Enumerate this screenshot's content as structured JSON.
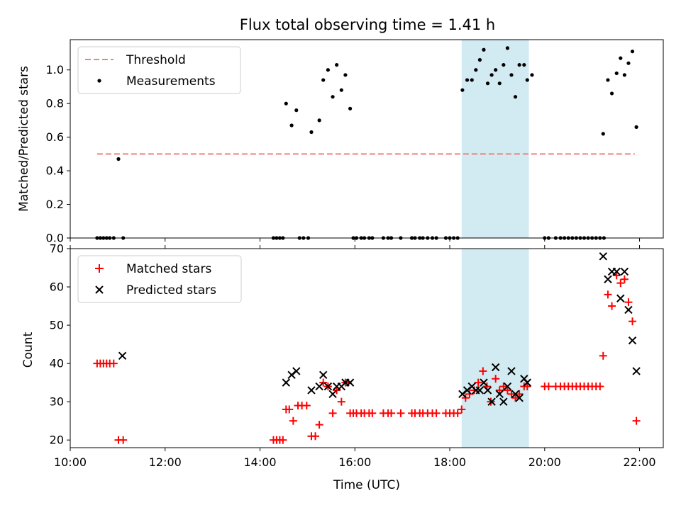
{
  "chart_data": [
    {
      "type": "scatter",
      "title": "Flux total observing time = 1.41 h",
      "xlabel": "",
      "ylabel": "Matched/Predicted stars",
      "xlim": [
        "10:00",
        "22:30"
      ],
      "ylim": [
        0,
        1.18
      ],
      "yticks": [
        "0.0",
        "0.2",
        "0.4",
        "0.6",
        "0.8",
        "1.0"
      ],
      "grid": false,
      "legend_position": "upper-left",
      "legend": [
        "Threshold",
        "Measurements"
      ],
      "highlight_span": {
        "start": "18:15",
        "end": "19:40",
        "color": "#add8e6"
      },
      "threshold": {
        "name": "Threshold",
        "value": 0.5,
        "x_start": "10:34",
        "x_end": "21:54",
        "color": "#f08080",
        "style": "dashed"
      },
      "series": [
        {
          "name": "Measurements",
          "marker": "dot",
          "color": "#000000",
          "points": [
            {
              "x": "10:34",
              "y": 0
            },
            {
              "x": "10:38",
              "y": 0
            },
            {
              "x": "10:42",
              "y": 0
            },
            {
              "x": "10:46",
              "y": 0
            },
            {
              "x": "10:50",
              "y": 0
            },
            {
              "x": "10:55",
              "y": 0
            },
            {
              "x": "11:01",
              "y": 0.47
            },
            {
              "x": "11:07",
              "y": 0
            },
            {
              "x": "14:17",
              "y": 0
            },
            {
              "x": "14:21",
              "y": 0
            },
            {
              "x": "14:25",
              "y": 0
            },
            {
              "x": "14:29",
              "y": 0
            },
            {
              "x": "14:33",
              "y": 0.8
            },
            {
              "x": "14:40",
              "y": 0.67
            },
            {
              "x": "14:46",
              "y": 0.76
            },
            {
              "x": "14:50",
              "y": 0
            },
            {
              "x": "14:55",
              "y": 0
            },
            {
              "x": "15:01",
              "y": 0
            },
            {
              "x": "15:05",
              "y": 0.63
            },
            {
              "x": "15:15",
              "y": 0.7
            },
            {
              "x": "15:20",
              "y": 0.94
            },
            {
              "x": "15:26",
              "y": 1.0
            },
            {
              "x": "15:32",
              "y": 0.84
            },
            {
              "x": "15:37",
              "y": 1.03
            },
            {
              "x": "15:43",
              "y": 0.88
            },
            {
              "x": "15:48",
              "y": 0.97
            },
            {
              "x": "15:54",
              "y": 0.77
            },
            {
              "x": "15:58",
              "y": 0
            },
            {
              "x": "16:02",
              "y": 0
            },
            {
              "x": "16:08",
              "y": 0
            },
            {
              "x": "16:12",
              "y": 0
            },
            {
              "x": "16:18",
              "y": 0
            },
            {
              "x": "16:22",
              "y": 0
            },
            {
              "x": "16:36",
              "y": 0
            },
            {
              "x": "16:42",
              "y": 0
            },
            {
              "x": "16:46",
              "y": 0
            },
            {
              "x": "16:58",
              "y": 0
            },
            {
              "x": "17:12",
              "y": 0
            },
            {
              "x": "17:16",
              "y": 0
            },
            {
              "x": "17:22",
              "y": 0
            },
            {
              "x": "17:26",
              "y": 0
            },
            {
              "x": "17:32",
              "y": 0
            },
            {
              "x": "17:38",
              "y": 0
            },
            {
              "x": "17:43",
              "y": 0
            },
            {
              "x": "17:55",
              "y": 0
            },
            {
              "x": "18:00",
              "y": 0
            },
            {
              "x": "18:05",
              "y": 0
            },
            {
              "x": "18:10",
              "y": 0
            },
            {
              "x": "18:16",
              "y": 0.88
            },
            {
              "x": "18:22",
              "y": 0.94
            },
            {
              "x": "18:28",
              "y": 0.94
            },
            {
              "x": "18:33",
              "y": 1.0
            },
            {
              "x": "18:38",
              "y": 1.06
            },
            {
              "x": "18:43",
              "y": 1.12
            },
            {
              "x": "18:48",
              "y": 0.92
            },
            {
              "x": "18:53",
              "y": 0.97
            },
            {
              "x": "18:58",
              "y": 1.0
            },
            {
              "x": "19:03",
              "y": 0.92
            },
            {
              "x": "19:08",
              "y": 1.03
            },
            {
              "x": "19:13",
              "y": 1.13
            },
            {
              "x": "19:18",
              "y": 0.97
            },
            {
              "x": "19:23",
              "y": 0.84
            },
            {
              "x": "19:28",
              "y": 1.03
            },
            {
              "x": "19:34",
              "y": 1.03
            },
            {
              "x": "19:38",
              "y": 0.94
            },
            {
              "x": "19:44",
              "y": 0.97
            },
            {
              "x": "20:00",
              "y": 0
            },
            {
              "x": "20:05",
              "y": 0
            },
            {
              "x": "20:14",
              "y": 0
            },
            {
              "x": "20:20",
              "y": 0
            },
            {
              "x": "20:25",
              "y": 0
            },
            {
              "x": "20:30",
              "y": 0
            },
            {
              "x": "20:35",
              "y": 0
            },
            {
              "x": "20:40",
              "y": 0
            },
            {
              "x": "20:45",
              "y": 0
            },
            {
              "x": "20:50",
              "y": 0
            },
            {
              "x": "20:55",
              "y": 0
            },
            {
              "x": "21:00",
              "y": 0
            },
            {
              "x": "21:05",
              "y": 0
            },
            {
              "x": "21:10",
              "y": 0
            },
            {
              "x": "21:15",
              "y": 0
            },
            {
              "x": "21:14",
              "y": 0.62
            },
            {
              "x": "21:20",
              "y": 0.94
            },
            {
              "x": "21:25",
              "y": 0.86
            },
            {
              "x": "21:31",
              "y": 0.98
            },
            {
              "x": "21:36",
              "y": 1.07
            },
            {
              "x": "21:41",
              "y": 0.97
            },
            {
              "x": "21:46",
              "y": 1.04
            },
            {
              "x": "21:51",
              "y": 1.11
            },
            {
              "x": "21:56",
              "y": 0.66
            }
          ]
        }
      ]
    },
    {
      "type": "scatter",
      "title": "",
      "xlabel": "Time (UTC)",
      "ylabel": "Count",
      "xlim": [
        "10:00",
        "22:30"
      ],
      "ylim": [
        18,
        70
      ],
      "xticks": [
        "10:00",
        "12:00",
        "14:00",
        "16:00",
        "18:00",
        "20:00",
        "22:00"
      ],
      "yticks": [
        "20",
        "30",
        "40",
        "50",
        "60",
        "70"
      ],
      "grid": false,
      "legend_position": "upper-left",
      "legend": [
        "Matched stars",
        "Predicted stars"
      ],
      "highlight_span": {
        "start": "18:15",
        "end": "19:40",
        "color": "#add8e6"
      },
      "series": [
        {
          "name": "Matched stars",
          "marker": "plus",
          "color": "#ff0000",
          "points": [
            {
              "x": "10:34",
              "y": 40
            },
            {
              "x": "10:38",
              "y": 40
            },
            {
              "x": "10:42",
              "y": 40
            },
            {
              "x": "10:46",
              "y": 40
            },
            {
              "x": "10:50",
              "y": 40
            },
            {
              "x": "10:55",
              "y": 40
            },
            {
              "x": "11:01",
              "y": 20
            },
            {
              "x": "11:07",
              "y": 20
            },
            {
              "x": "14:17",
              "y": 20
            },
            {
              "x": "14:21",
              "y": 20
            },
            {
              "x": "14:25",
              "y": 20
            },
            {
              "x": "14:29",
              "y": 20
            },
            {
              "x": "14:33",
              "y": 28
            },
            {
              "x": "14:37",
              "y": 28
            },
            {
              "x": "14:42",
              "y": 25
            },
            {
              "x": "14:48",
              "y": 29
            },
            {
              "x": "14:53",
              "y": 29
            },
            {
              "x": "14:59",
              "y": 29
            },
            {
              "x": "15:05",
              "y": 21
            },
            {
              "x": "15:10",
              "y": 21
            },
            {
              "x": "15:15",
              "y": 24
            },
            {
              "x": "15:20",
              "y": 35
            },
            {
              "x": "15:26",
              "y": 34
            },
            {
              "x": "15:32",
              "y": 27
            },
            {
              "x": "15:37",
              "y": 33
            },
            {
              "x": "15:43",
              "y": 30
            },
            {
              "x": "15:48",
              "y": 35
            },
            {
              "x": "15:54",
              "y": 27
            },
            {
              "x": "15:58",
              "y": 27
            },
            {
              "x": "16:02",
              "y": 27
            },
            {
              "x": "16:08",
              "y": 27
            },
            {
              "x": "16:12",
              "y": 27
            },
            {
              "x": "16:18",
              "y": 27
            },
            {
              "x": "16:22",
              "y": 27
            },
            {
              "x": "16:36",
              "y": 27
            },
            {
              "x": "16:42",
              "y": 27
            },
            {
              "x": "16:46",
              "y": 27
            },
            {
              "x": "16:58",
              "y": 27
            },
            {
              "x": "17:12",
              "y": 27
            },
            {
              "x": "17:16",
              "y": 27
            },
            {
              "x": "17:22",
              "y": 27
            },
            {
              "x": "17:26",
              "y": 27
            },
            {
              "x": "17:32",
              "y": 27
            },
            {
              "x": "17:38",
              "y": 27
            },
            {
              "x": "17:43",
              "y": 27
            },
            {
              "x": "17:55",
              "y": 27
            },
            {
              "x": "18:00",
              "y": 27
            },
            {
              "x": "18:05",
              "y": 27
            },
            {
              "x": "18:10",
              "y": 27
            },
            {
              "x": "18:15",
              "y": 28
            },
            {
              "x": "18:20",
              "y": 31
            },
            {
              "x": "18:25",
              "y": 32
            },
            {
              "x": "18:31",
              "y": 33
            },
            {
              "x": "18:36",
              "y": 35
            },
            {
              "x": "18:42",
              "y": 38
            },
            {
              "x": "18:47",
              "y": 34
            },
            {
              "x": "18:52",
              "y": 30
            },
            {
              "x": "18:58",
              "y": 36
            },
            {
              "x": "19:03",
              "y": 33
            },
            {
              "x": "19:08",
              "y": 34
            },
            {
              "x": "19:13",
              "y": 33
            },
            {
              "x": "19:18",
              "y": 32
            },
            {
              "x": "19:23",
              "y": 31
            },
            {
              "x": "19:28",
              "y": 32
            },
            {
              "x": "19:34",
              "y": 34
            },
            {
              "x": "19:38",
              "y": 34
            },
            {
              "x": "20:00",
              "y": 34
            },
            {
              "x": "20:05",
              "y": 34
            },
            {
              "x": "20:14",
              "y": 34
            },
            {
              "x": "20:20",
              "y": 34
            },
            {
              "x": "20:25",
              "y": 34
            },
            {
              "x": "20:30",
              "y": 34
            },
            {
              "x": "20:35",
              "y": 34
            },
            {
              "x": "20:40",
              "y": 34
            },
            {
              "x": "20:45",
              "y": 34
            },
            {
              "x": "20:50",
              "y": 34
            },
            {
              "x": "20:55",
              "y": 34
            },
            {
              "x": "21:00",
              "y": 34
            },
            {
              "x": "21:05",
              "y": 34
            },
            {
              "x": "21:10",
              "y": 34
            },
            {
              "x": "21:14",
              "y": 42
            },
            {
              "x": "21:20",
              "y": 58
            },
            {
              "x": "21:25",
              "y": 55
            },
            {
              "x": "21:31",
              "y": 63
            },
            {
              "x": "21:36",
              "y": 61
            },
            {
              "x": "21:41",
              "y": 62
            },
            {
              "x": "21:46",
              "y": 56
            },
            {
              "x": "21:51",
              "y": 51
            },
            {
              "x": "21:56",
              "y": 25
            }
          ]
        },
        {
          "name": "Predicted stars",
          "marker": "x",
          "color": "#000000",
          "points": [
            {
              "x": "11:06",
              "y": 42
            },
            {
              "x": "14:33",
              "y": 35
            },
            {
              "x": "14:40",
              "y": 37
            },
            {
              "x": "14:46",
              "y": 38
            },
            {
              "x": "15:05",
              "y": 33
            },
            {
              "x": "15:15",
              "y": 34
            },
            {
              "x": "15:20",
              "y": 37
            },
            {
              "x": "15:26",
              "y": 34
            },
            {
              "x": "15:32",
              "y": 32
            },
            {
              "x": "15:37",
              "y": 34
            },
            {
              "x": "15:43",
              "y": 34
            },
            {
              "x": "15:48",
              "y": 35
            },
            {
              "x": "15:54",
              "y": 35
            },
            {
              "x": "18:16",
              "y": 32
            },
            {
              "x": "18:22",
              "y": 33
            },
            {
              "x": "18:28",
              "y": 34
            },
            {
              "x": "18:33",
              "y": 33
            },
            {
              "x": "18:38",
              "y": 33
            },
            {
              "x": "18:43",
              "y": 35
            },
            {
              "x": "18:48",
              "y": 33
            },
            {
              "x": "18:53",
              "y": 30
            },
            {
              "x": "18:58",
              "y": 39
            },
            {
              "x": "19:03",
              "y": 32
            },
            {
              "x": "19:08",
              "y": 30
            },
            {
              "x": "19:13",
              "y": 34
            },
            {
              "x": "19:18",
              "y": 38
            },
            {
              "x": "19:23",
              "y": 32
            },
            {
              "x": "19:28",
              "y": 31
            },
            {
              "x": "19:34",
              "y": 36
            },
            {
              "x": "19:38",
              "y": 35
            },
            {
              "x": "21:14",
              "y": 68
            },
            {
              "x": "21:20",
              "y": 62
            },
            {
              "x": "21:25",
              "y": 64
            },
            {
              "x": "21:31",
              "y": 64
            },
            {
              "x": "21:36",
              "y": 57
            },
            {
              "x": "21:41",
              "y": 64
            },
            {
              "x": "21:46",
              "y": 54
            },
            {
              "x": "21:51",
              "y": 46
            },
            {
              "x": "21:56",
              "y": 38
            }
          ]
        }
      ]
    }
  ]
}
